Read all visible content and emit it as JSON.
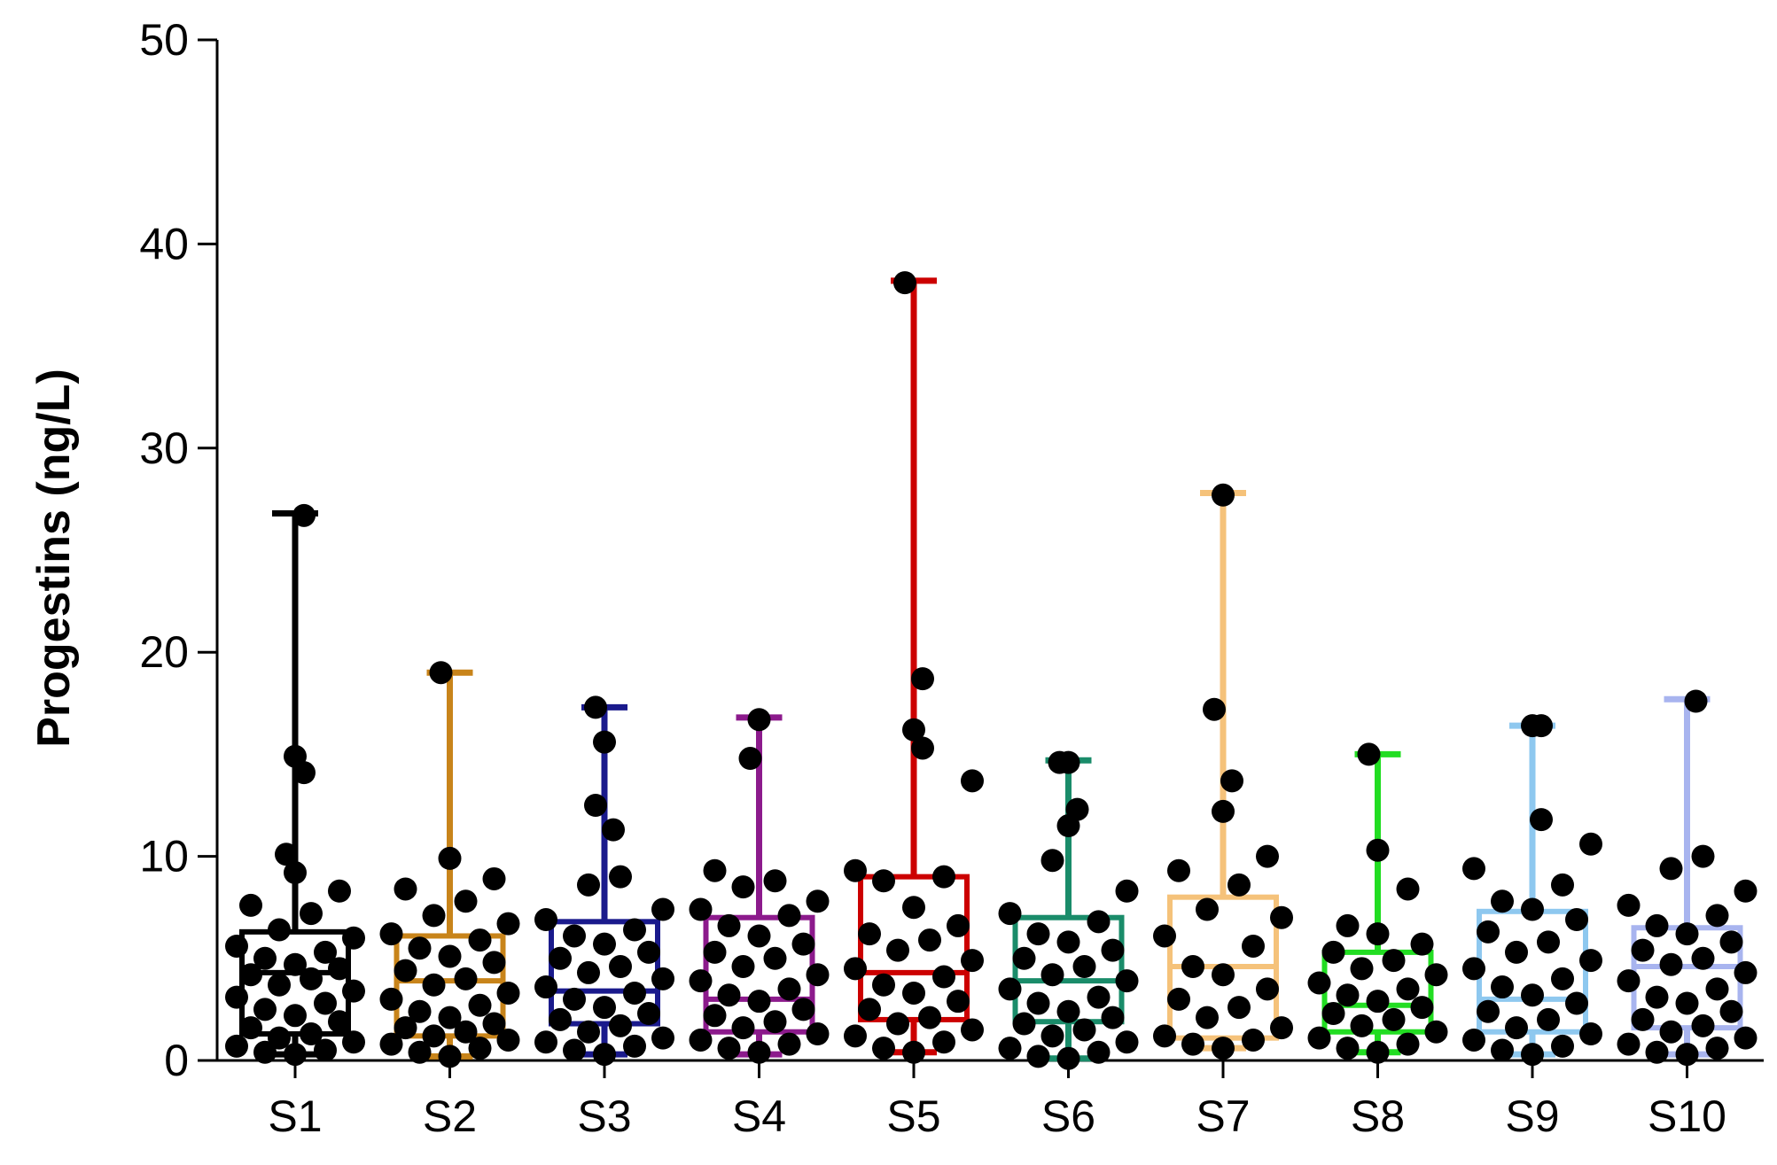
{
  "chart_data": {
    "type": "box",
    "title": "",
    "xlabel": "",
    "ylabel": "Progestins (ng/L)",
    "ylim": [
      0,
      50
    ],
    "yticks": [
      "0",
      "10",
      "20",
      "30",
      "40",
      "50"
    ],
    "grid": false,
    "categories": [
      "S1",
      "S2",
      "S3",
      "S4",
      "S5",
      "S6",
      "S7",
      "S8",
      "S9",
      "S10"
    ],
    "boxes": [
      {
        "name": "S1",
        "color": "#000000",
        "min": 0.3,
        "q1": 1.3,
        "median": 4.3,
        "q3": 6.3,
        "max": 26.8,
        "points": [
          26.7,
          14.9,
          14.1,
          10.1,
          9.2,
          8.3,
          7.6,
          7.2,
          6.4,
          6.0,
          5.6,
          5.3,
          5.0,
          4.7,
          4.5,
          4.2,
          4.0,
          3.7,
          3.4,
          3.1,
          2.8,
          2.5,
          2.2,
          1.9,
          1.6,
          1.3,
          1.1,
          0.9,
          0.7,
          0.5,
          0.4,
          0.3
        ]
      },
      {
        "name": "S2",
        "color": "#c8841a",
        "min": 0.2,
        "q1": 1.2,
        "median": 3.9,
        "q3": 6.1,
        "max": 19.0,
        "points": [
          19.0,
          9.9,
          8.9,
          8.4,
          7.8,
          7.1,
          6.7,
          6.2,
          5.9,
          5.5,
          5.1,
          4.8,
          4.4,
          4.0,
          3.7,
          3.3,
          3.0,
          2.7,
          2.4,
          2.1,
          1.8,
          1.6,
          1.4,
          1.2,
          1.0,
          0.8,
          0.6,
          0.4,
          0.2
        ]
      },
      {
        "name": "S3",
        "color": "#1a1a8c",
        "min": 0.3,
        "q1": 1.8,
        "median": 3.4,
        "q3": 6.8,
        "max": 17.3,
        "points": [
          17.3,
          15.6,
          12.5,
          11.3,
          9.0,
          8.6,
          7.4,
          6.9,
          6.4,
          6.1,
          5.7,
          5.3,
          5.0,
          4.6,
          4.3,
          4.0,
          3.6,
          3.3,
          3.0,
          2.6,
          2.3,
          2.0,
          1.7,
          1.4,
          1.1,
          0.9,
          0.7,
          0.5,
          0.3
        ]
      },
      {
        "name": "S4",
        "color": "#8c1a8c",
        "min": 0.3,
        "q1": 1.4,
        "median": 3.0,
        "q3": 7.0,
        "max": 16.8,
        "points": [
          16.7,
          14.8,
          9.3,
          8.8,
          8.5,
          7.8,
          7.4,
          7.1,
          6.6,
          6.1,
          5.7,
          5.3,
          5.0,
          4.6,
          4.2,
          3.9,
          3.5,
          3.2,
          2.9,
          2.5,
          2.2,
          1.9,
          1.6,
          1.3,
          1.0,
          0.8,
          0.6,
          0.4
        ]
      },
      {
        "name": "S5",
        "color": "#cc0000",
        "min": 0.4,
        "q1": 2.0,
        "median": 4.3,
        "q3": 9.0,
        "max": 38.2,
        "points": [
          38.1,
          18.7,
          16.2,
          15.3,
          13.7,
          9.3,
          9.0,
          8.8,
          7.5,
          6.6,
          6.2,
          5.9,
          5.4,
          4.9,
          4.5,
          4.1,
          3.7,
          3.3,
          2.9,
          2.5,
          2.1,
          1.8,
          1.5,
          1.2,
          0.9,
          0.6,
          0.4
        ]
      },
      {
        "name": "S6",
        "color": "#1a8c6a",
        "min": 0.1,
        "q1": 1.9,
        "median": 3.9,
        "q3": 7.0,
        "max": 14.7,
        "points": [
          14.6,
          14.6,
          12.3,
          11.5,
          9.8,
          8.3,
          7.2,
          6.8,
          6.2,
          5.8,
          5.4,
          5.0,
          4.6,
          4.2,
          3.9,
          3.5,
          3.1,
          2.8,
          2.4,
          2.1,
          1.8,
          1.5,
          1.2,
          0.9,
          0.6,
          0.4,
          0.2,
          0.1
        ]
      },
      {
        "name": "S7",
        "color": "#f5c27a",
        "min": 0.6,
        "q1": 1.1,
        "median": 4.6,
        "q3": 8.0,
        "max": 27.8,
        "points": [
          27.7,
          17.2,
          13.7,
          12.2,
          10.0,
          9.3,
          8.6,
          7.4,
          7.0,
          6.1,
          5.6,
          4.6,
          4.2,
          3.5,
          3.0,
          2.6,
          2.1,
          1.6,
          1.2,
          1.0,
          0.8,
          0.6
        ]
      },
      {
        "name": "S8",
        "color": "#22dd22",
        "min": 0.4,
        "q1": 1.4,
        "median": 2.7,
        "q3": 5.3,
        "max": 15.0,
        "points": [
          15.0,
          10.3,
          8.4,
          6.6,
          6.2,
          5.7,
          5.3,
          4.9,
          4.5,
          4.2,
          3.8,
          3.5,
          3.2,
          2.9,
          2.6,
          2.3,
          2.0,
          1.7,
          1.4,
          1.1,
          0.8,
          0.6,
          0.4
        ]
      },
      {
        "name": "S9",
        "color": "#8ec8ef",
        "min": 0.3,
        "q1": 1.4,
        "median": 3.0,
        "q3": 7.3,
        "max": 16.4,
        "points": [
          16.4,
          16.4,
          11.8,
          10.6,
          9.4,
          8.6,
          7.8,
          7.4,
          6.9,
          6.3,
          5.8,
          5.3,
          4.9,
          4.5,
          4.0,
          3.6,
          3.2,
          2.8,
          2.4,
          2.0,
          1.6,
          1.3,
          1.0,
          0.7,
          0.5,
          0.3
        ]
      },
      {
        "name": "S10",
        "color": "#a8b4ef",
        "min": 0.3,
        "q1": 1.6,
        "median": 4.6,
        "q3": 6.5,
        "max": 17.7,
        "points": [
          17.6,
          10.0,
          9.4,
          8.3,
          7.6,
          7.1,
          6.6,
          6.2,
          5.8,
          5.4,
          5.0,
          4.7,
          4.3,
          3.9,
          3.5,
          3.1,
          2.8,
          2.4,
          2.0,
          1.7,
          1.4,
          1.1,
          0.8,
          0.6,
          0.4,
          0.3
        ]
      }
    ]
  }
}
